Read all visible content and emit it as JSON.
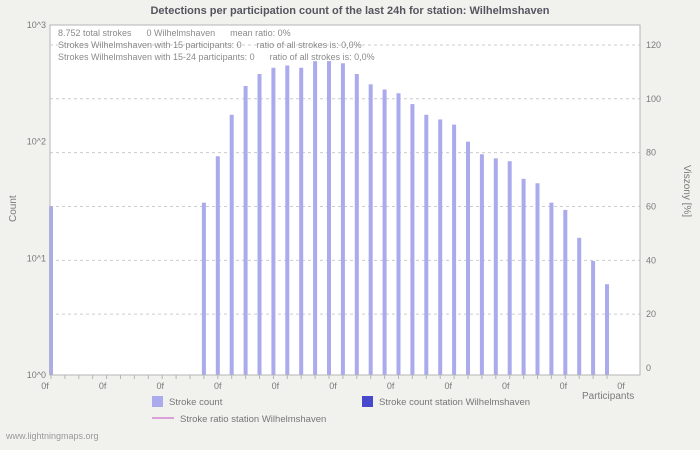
{
  "page": {
    "watermark": "www.lightningmaps.org",
    "background": "#f1f1ee"
  },
  "chart_data": {
    "type": "bar",
    "title": "Detections per participation count of the last 24h for station: Wilhelmshaven",
    "annotations": [
      "8.752 total strokes      0 Wilhelmshaven      mean ratio: 0%",
      "Strokes Wilhelmshaven with 15 participants: 0      ratio of all strokes is: 0,0%",
      "Strokes Wilhelmshaven with 15-24 participants: 0      ratio of all strokes is: 0,0%"
    ],
    "x": {
      "label": "Participants",
      "tick_labels": [
        "0f",
        "0f",
        "0f",
        "0f",
        "0f",
        "0f",
        "0f",
        "0f",
        "0f",
        "0f",
        "0f"
      ]
    },
    "y_left": {
      "label": "Count",
      "scale": "log",
      "range": [
        1,
        1000
      ],
      "ticks": [
        "10^0",
        "10^1",
        "10^2",
        "10^3"
      ]
    },
    "y_right": {
      "label": "Viszony [%]",
      "range": [
        0,
        130
      ],
      "ticks": [
        0,
        20,
        40,
        60,
        80,
        100,
        120
      ]
    },
    "grid": "horizontal-dashed",
    "legend_position": "bottom",
    "colors": {
      "grid": "#cccccc",
      "axis": "#b5b5b5",
      "tick_text": "#7a7a7a"
    },
    "series": [
      {
        "name": "Stroke count",
        "type": "bar",
        "color": "#aaaaec",
        "values": [
          28,
          null,
          null,
          null,
          null,
          null,
          null,
          null,
          null,
          null,
          null,
          30,
          75,
          170,
          300,
          380,
          430,
          450,
          430,
          490,
          490,
          470,
          380,
          310,
          280,
          260,
          210,
          170,
          155,
          140,
          100,
          78,
          72,
          68,
          48,
          44,
          30,
          26,
          15,
          9.5,
          6
        ]
      },
      {
        "name": "Stroke count station Wilhelmshaven",
        "type": "bar",
        "color": "#4848cc",
        "values": []
      },
      {
        "name": "Stroke ratio station Wilhelmshaven",
        "type": "line",
        "color": "#d9a0d9",
        "values": []
      }
    ]
  }
}
